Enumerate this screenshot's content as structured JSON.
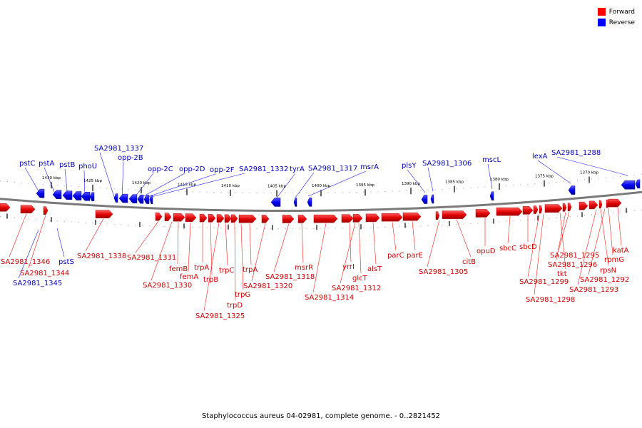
{
  "legend": [
    {
      "label": "Forward",
      "color": "#ff0000"
    },
    {
      "label": "Reverse",
      "color": "#0000ff"
    }
  ],
  "caption": "Staphylococcus aureus 04-02981, complete genome. - 0..2821452",
  "colors": {
    "forward": "#e00000",
    "forward_label": "#d00000",
    "reverse": "#0000ee",
    "reverse_label": "#0000bb",
    "backbone": "#7a7a7a"
  },
  "ruler_ticks": [
    "1430 kbp",
    "1425 kbp",
    "1420 kbp",
    "1415 kbp",
    "1410 kbp",
    "1405 kbp",
    "1400 kbp",
    "1395 kbp",
    "1390 kbp",
    "1385 kbp",
    "1380 kbp",
    "1375 kbp",
    "1370 kbp"
  ],
  "reverse_genes": [
    "pstC",
    "pstA",
    "pstB",
    "phoU",
    "SA2981_1337",
    "opp-2B",
    "opp-2C",
    "opp-2D",
    "opp-2F",
    "SA2981_1332",
    "tyrA",
    "SA2981_1317",
    "msrA",
    "plsY",
    "SA2981_1306",
    "mscL",
    "lexA",
    "SA2981_1288",
    "pstS",
    "SA2981_1345"
  ],
  "forward_genes": [
    "SA2981_1346",
    "SA2981_1344",
    "SA2981_1338",
    "SA2981_1331",
    "femB",
    "femA",
    "SA2981_1330",
    "trpA",
    "trpB",
    "trpC",
    "trpD",
    "SA2981_1325",
    "trpG",
    "trpA",
    "SA2981_1320",
    "SA2981_1318",
    "msrR",
    "SA2981_1314",
    "yrrI",
    "glcT",
    "SA2981_1312",
    "alsT",
    "parC",
    "parE",
    "SA2981_1305",
    "citB",
    "opuD",
    "sbcC",
    "sbcD",
    "SA2981_1299",
    "SA2981_1298",
    "tkt",
    "SA2981_1296",
    "SA2981_1295",
    "rpsN",
    "SA2981_1293",
    "SA2981_1292",
    "rpmG",
    "katA"
  ]
}
